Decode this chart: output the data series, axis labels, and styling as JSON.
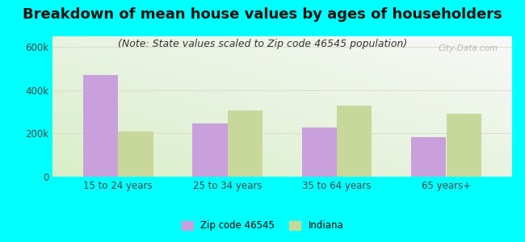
{
  "title": "Breakdown of mean house values by ages of householders",
  "subtitle": "(Note: State values scaled to Zip code 46545 population)",
  "categories": [
    "15 to 24 years",
    "25 to 34 years",
    "35 to 64 years",
    "65 years+"
  ],
  "zip_values": [
    470000,
    245000,
    228000,
    182000
  ],
  "indiana_values": [
    210000,
    305000,
    328000,
    293000
  ],
  "zip_color": "#c9a0dc",
  "indiana_color": "#c8d89a",
  "background_outer": "#00ffff",
  "ylim": [
    0,
    650000
  ],
  "yticks": [
    0,
    200000,
    400000,
    600000
  ],
  "ytick_labels": [
    "0",
    "200k",
    "400k",
    "600k"
  ],
  "zip_label": "Zip code 46545",
  "indiana_label": "Indiana",
  "title_fontsize": 13,
  "subtitle_fontsize": 9,
  "bar_width": 0.32
}
